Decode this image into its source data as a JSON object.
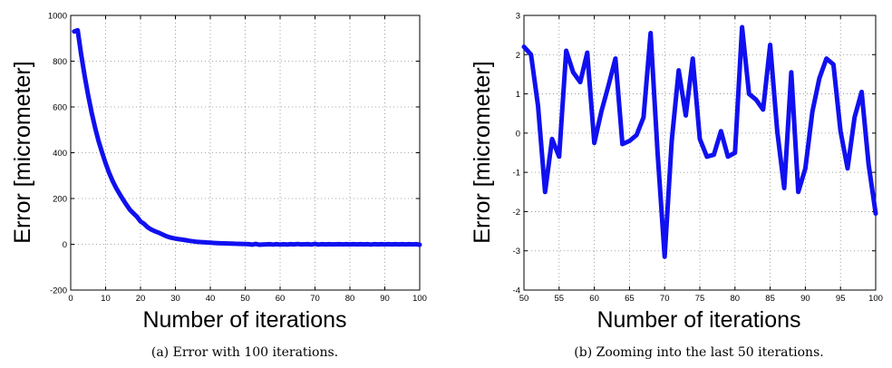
{
  "chart_data": [
    {
      "type": "line",
      "caption": "(a) Error with 100 iterations.",
      "xlabel": "Number of iterations",
      "ylabel": "Error [micrometer]",
      "xlim": [
        0,
        100
      ],
      "ylim": [
        -200,
        1000
      ],
      "xticks": [
        0,
        10,
        20,
        30,
        40,
        50,
        60,
        70,
        80,
        90,
        100
      ],
      "yticks": [
        -200,
        0,
        200,
        400,
        600,
        800,
        1000
      ],
      "grid": true,
      "color": "#1010f0",
      "x": [
        1,
        2,
        3,
        4,
        5,
        6,
        7,
        8,
        9,
        10,
        11,
        12,
        13,
        14,
        15,
        16,
        17,
        18,
        19,
        20,
        21,
        22,
        23,
        24,
        25,
        26,
        27,
        28,
        29,
        30,
        31,
        32,
        33,
        34,
        35,
        36,
        37,
        38,
        39,
        40,
        41,
        42,
        43,
        44,
        45,
        46,
        47,
        48,
        49,
        50,
        51,
        52,
        53,
        54,
        55,
        56,
        57,
        58,
        59,
        60,
        61,
        62,
        63,
        64,
        65,
        66,
        67,
        68,
        69,
        70,
        71,
        72,
        73,
        74,
        75,
        76,
        77,
        78,
        79,
        80,
        81,
        82,
        83,
        84,
        85,
        86,
        87,
        88,
        89,
        90,
        91,
        92,
        93,
        94,
        95,
        96,
        97,
        98,
        99,
        100
      ],
      "values": [
        930,
        935,
        830,
        735,
        650,
        575,
        508,
        450,
        400,
        354,
        313,
        277,
        246,
        220,
        195,
        172,
        150,
        135,
        120,
        100,
        90,
        75,
        65,
        58,
        52,
        45,
        38,
        32,
        28,
        25,
        22,
        20,
        18,
        15,
        13,
        11,
        10,
        9,
        8,
        7,
        6,
        5,
        4.5,
        4,
        3.5,
        3,
        2.5,
        2,
        1.5,
        1,
        0.5,
        -1.5,
        1.5,
        -2,
        -1,
        -0.5,
        0.5,
        -1,
        0.5,
        -1,
        0,
        -1,
        0.5,
        -0.5,
        1,
        -0.5,
        0,
        0.5,
        -1,
        1.5,
        -1,
        0.5,
        -0.5,
        0.5,
        -0.5,
        0,
        0.5,
        -0.5,
        0.5,
        -0.5,
        0.5,
        -0.5,
        0.5,
        -0.5,
        0.5,
        -1,
        0.5,
        -0.5,
        0.5,
        -0.5,
        0.5,
        -0.5,
        0.5,
        -0.5,
        0.5,
        -0.5,
        0.5,
        -0.5,
        0.5,
        -2
      ]
    },
    {
      "type": "line",
      "caption": "(b) Zooming into the last 50 iterations.",
      "xlabel": "Number of iterations",
      "ylabel": "Error [micrometer]",
      "xlim": [
        50,
        100
      ],
      "ylim": [
        -4,
        3
      ],
      "xticks": [
        50,
        55,
        60,
        65,
        70,
        75,
        80,
        85,
        90,
        95,
        100
      ],
      "yticks": [
        -4,
        -3,
        -2,
        -1,
        0,
        1,
        2,
        3
      ],
      "grid": true,
      "color": "#1010f0",
      "x": [
        50,
        51,
        52,
        53,
        54,
        55,
        56,
        57,
        58,
        59,
        60,
        61,
        62,
        63,
        64,
        65,
        66,
        67,
        68,
        69,
        70,
        71,
        72,
        73,
        74,
        75,
        76,
        77,
        78,
        79,
        80,
        81,
        82,
        83,
        84,
        85,
        86,
        87,
        88,
        89,
        90,
        91,
        92,
        93,
        94,
        95,
        96,
        97,
        98,
        99,
        100
      ],
      "values": [
        2.2,
        2.0,
        0.7,
        -1.5,
        -0.15,
        -0.6,
        2.1,
        1.55,
        1.3,
        2.05,
        -0.25,
        0.55,
        1.2,
        1.9,
        -0.28,
        -0.2,
        -0.05,
        0.4,
        2.55,
        -0.5,
        -3.15,
        -0.2,
        1.6,
        0.45,
        1.9,
        -0.15,
        -0.6,
        -0.55,
        0.05,
        -0.6,
        -0.5,
        2.7,
        1.0,
        0.85,
        0.6,
        2.25,
        0.05,
        -1.4,
        1.55,
        -1.5,
        -0.9,
        0.55,
        1.4,
        1.9,
        1.75,
        0.05,
        -0.9,
        0.4,
        1.05,
        -0.8,
        -2.05
      ]
    }
  ]
}
